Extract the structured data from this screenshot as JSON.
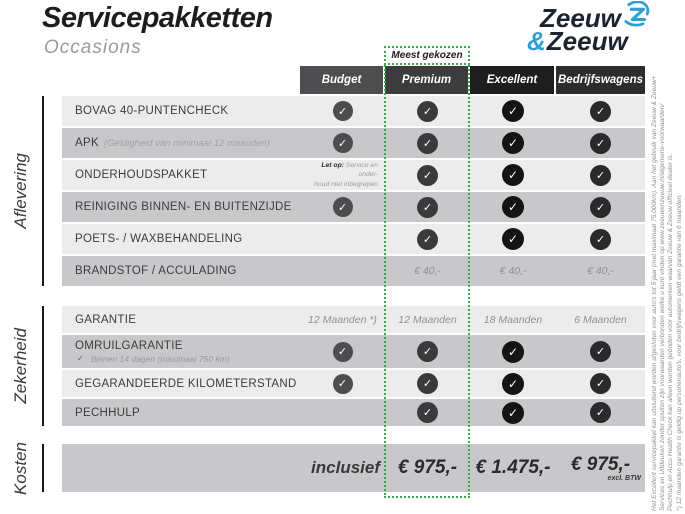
{
  "page": {
    "title": "Servicepakketten",
    "subtitle": "Occasions"
  },
  "logo": {
    "word1": "Zeeuw",
    "amp": "&",
    "word2": "Zeeuw",
    "icon": "z-swirl-icon"
  },
  "badge": {
    "label": "Meest gekozen"
  },
  "columns": [
    {
      "label": "Budget",
      "header_bg": "#4d4d4f",
      "check_bg": "#4d4d4f"
    },
    {
      "label": "Premium",
      "header_bg": "#3c3c3e",
      "check_bg": "#3a3a3c",
      "highlighted": true
    },
    {
      "label": "Excellent",
      "header_bg": "#1e1e1e",
      "check_bg": "#141414"
    },
    {
      "label": "Bedrijfswagens",
      "header_bg": "#2d2d2f",
      "check_bg": "#2a2a2c"
    }
  ],
  "sections": [
    {
      "label": "Aflevering",
      "rows": [
        {
          "label": "BOVAG 40-PUNTENCHECK",
          "cells": [
            "check",
            "check",
            "check",
            "check"
          ]
        },
        {
          "label": "APK",
          "label_note": "(Geldigheid van minimaal 12 maanden)",
          "cells": [
            "check",
            "check",
            "check",
            "check"
          ]
        },
        {
          "label": "ONDERHOUDSPAKKET",
          "cells": [
            {
              "note_bold": "Let op:",
              "note_lines": [
                "Service en onder-",
                "houd niet inbegrepen"
              ]
            },
            "check",
            "check",
            "check"
          ]
        },
        {
          "label": "REINIGING BINNEN- EN BUITENZIJDE",
          "cells": [
            "check",
            "check",
            "check",
            "check"
          ]
        },
        {
          "label": "POETS- / WAXBEHANDELING",
          "cells": [
            "",
            "check",
            "check",
            "check"
          ]
        },
        {
          "label": "BRANDSTOF / ACCULADING",
          "cells": [
            "",
            "€ 40,-",
            "€ 40,-",
            "€ 40,-"
          ]
        }
      ]
    },
    {
      "label": "Zekerheid",
      "rows": [
        {
          "label": "GARANTIE",
          "cells": [
            "12 Maanden *)",
            "12 Maanden",
            "18 Maanden",
            "6 Maanden"
          ]
        },
        {
          "label": "OMRUILGARANTIE",
          "sub_check": "✓",
          "sub_note": "Binnen 14 dagen (maximaal 750 km)",
          "cells": [
            "check",
            "check",
            "check",
            "check"
          ]
        },
        {
          "label": "GEGARANDEERDE KILOMETERSTAND",
          "cells": [
            "check",
            "check",
            "check",
            "check"
          ]
        },
        {
          "label": "PECHHULP",
          "cells": [
            "",
            "check",
            "check",
            "check"
          ]
        }
      ]
    }
  ],
  "kosten": {
    "label": "Kosten",
    "inclusief_label": "inclusief",
    "prices": [
      "€ 975,-",
      "€ 1.475,-",
      "€ 975,-"
    ],
    "price_note": "excl. BTW"
  },
  "footnotes": [
    "Het Excellent servicepakket kan uitsluitend worden afgesloten voor auto's tot 5 jaar (met maximaal 75.000km). Aan het gebruik van Zeeuw & Zeeuw+",
    "Services en Uitdeuken zonder spuiten zijn voorwaarden verbonden welke u kunt vinden op www.zeeuwenzeeuw.nl/algemene-voorwaarden/",
    "Pechhulp en Accu Health Check kan alleen worden geboden voor automerken waarvan Zeeuw & Zeeuw officieel dealer is.",
    "*) 12 maanden garantie is geldig op personenauto's, voor bedrijfswagens geldt een garantie van 6 maanden."
  ],
  "colors": {
    "accent_green": "#3fa64c",
    "logo_blue": "#2e9fd4",
    "row_light": "#ececec",
    "row_dark": "#c8c8ca"
  }
}
